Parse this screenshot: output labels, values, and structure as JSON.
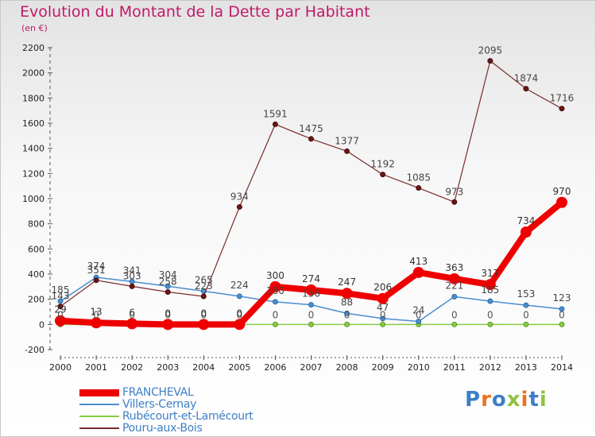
{
  "header": {
    "title": "Evolution du Montant de la Dette par Habitant",
    "unit": "(en €)"
  },
  "logo": {
    "text": "Proxiti",
    "colors": [
      "#3d7fc6",
      "#e8731c",
      "#3d7fc6",
      "#8fc23f",
      "#e8731c",
      "#3d7fc6",
      "#8fc23f"
    ]
  },
  "chart_data": {
    "type": "line",
    "title": "Evolution du Montant de la Dette par Habitant",
    "ylabel": "(en €)",
    "xlabel": "",
    "x": [
      2000,
      2001,
      2002,
      2003,
      2004,
      2005,
      2006,
      2007,
      2008,
      2009,
      2010,
      2011,
      2012,
      2013,
      2014
    ],
    "ylim": [
      -200,
      2200
    ],
    "yticks": [
      -200,
      0,
      200,
      400,
      600,
      800,
      1000,
      1200,
      1400,
      1600,
      1800,
      2000,
      2200
    ],
    "grid": false,
    "legend_position": "bottom-left",
    "series": [
      {
        "name": "FRANCHEVAL",
        "color": "#ee0000",
        "values": [
          29,
          13,
          6,
          0,
          0,
          0,
          300,
          274,
          247,
          206,
          413,
          363,
          317,
          734,
          970
        ],
        "labels": [
          "29",
          "13",
          "6",
          "0",
          "0",
          "0",
          "300",
          "274",
          "247",
          "206",
          "413",
          "363",
          "317",
          "734",
          "970"
        ]
      },
      {
        "name": "Villers-Cernay",
        "color": "#4a8ed0",
        "values": [
          185,
          374,
          341,
          304,
          265,
          224,
          180,
          156,
          88,
          47,
          24,
          221,
          185,
          153,
          123
        ],
        "labels": [
          "185",
          "374",
          "341",
          "304",
          "265",
          "224",
          "180",
          "156",
          "88",
          "47",
          "24",
          "221",
          "185",
          "153",
          "123"
        ]
      },
      {
        "name": "Rubécourt-et-Lamécourt",
        "color": "#88cc44",
        "values": [
          0,
          0,
          0,
          0,
          0,
          0,
          0,
          0,
          0,
          0,
          0,
          0,
          0,
          0,
          0
        ],
        "labels": [
          "0",
          "0",
          "0",
          "0",
          "0",
          "0",
          "0",
          "0",
          "0",
          "0",
          "0",
          "0",
          "0",
          "0",
          "0"
        ]
      },
      {
        "name": "Pouru-aux-Bois",
        "color": "#7b2a2a",
        "values": [
          143,
          351,
          303,
          258,
          223,
          934,
          1591,
          1475,
          1377,
          1192,
          1085,
          973,
          2095,
          1874,
          1716
        ],
        "labels": [
          "143",
          "351",
          "303",
          "258",
          "223",
          "934",
          "1591",
          "1475",
          "1377",
          "1192",
          "1085",
          "973",
          "2095",
          "1874",
          "1716"
        ]
      }
    ]
  }
}
